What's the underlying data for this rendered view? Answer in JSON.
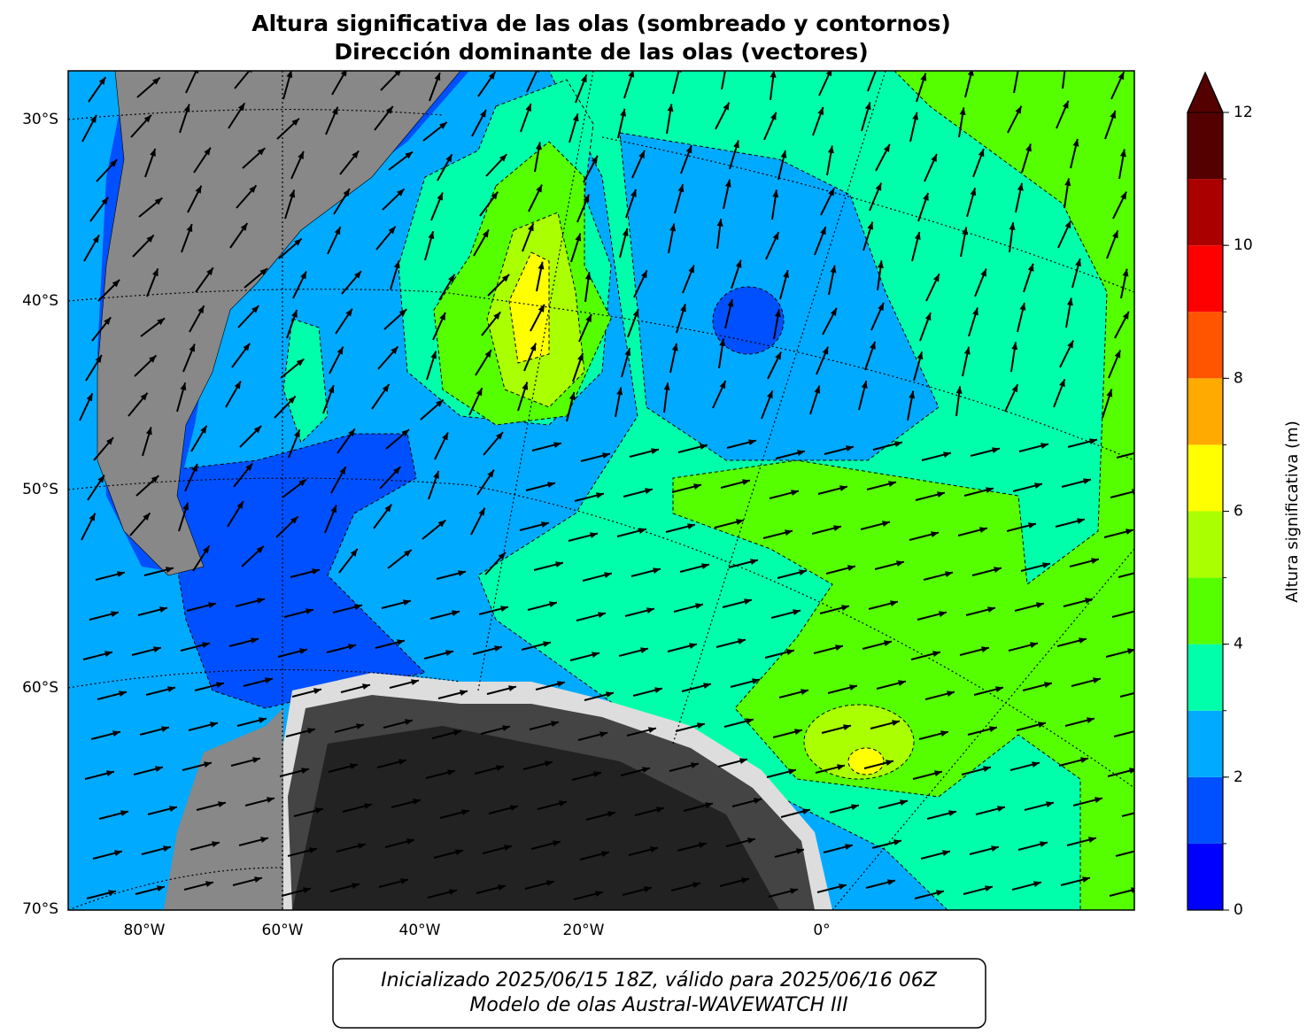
{
  "title": [
    "Altura significativa de las olas (sombreado y contornos)",
    "Dirección dominante de las olas (vectores)"
  ],
  "map": {
    "lat_labels": [
      "30°S",
      "40°S",
      "50°S",
      "60°S",
      "70°S"
    ],
    "lon_labels": [
      "80°W",
      "60°W",
      "40°W",
      "20°W",
      "0°"
    ]
  },
  "colorbar": {
    "label": "Altura significativa (m)",
    "lim": [
      0,
      12
    ],
    "ticks": [
      0,
      2,
      4,
      6,
      8,
      10,
      12
    ],
    "levels": [
      0,
      1,
      2,
      3,
      4,
      5,
      6,
      7,
      8,
      9,
      10,
      11,
      12
    ],
    "colors": [
      "#0000ff",
      "#0050ff",
      "#00aaff",
      "#00ffaa",
      "#55ff00",
      "#aaff00",
      "#ffff00",
      "#ffaa00",
      "#ff5500",
      "#ff0000",
      "#aa0000",
      "#550000"
    ],
    "extend_color": "#550000"
  },
  "footer": [
    "Inicializado 2025/06/15 18Z, válido para 2025/06/16 06Z",
    "Modelo de olas Austral-WAVEWATCH III"
  ]
}
